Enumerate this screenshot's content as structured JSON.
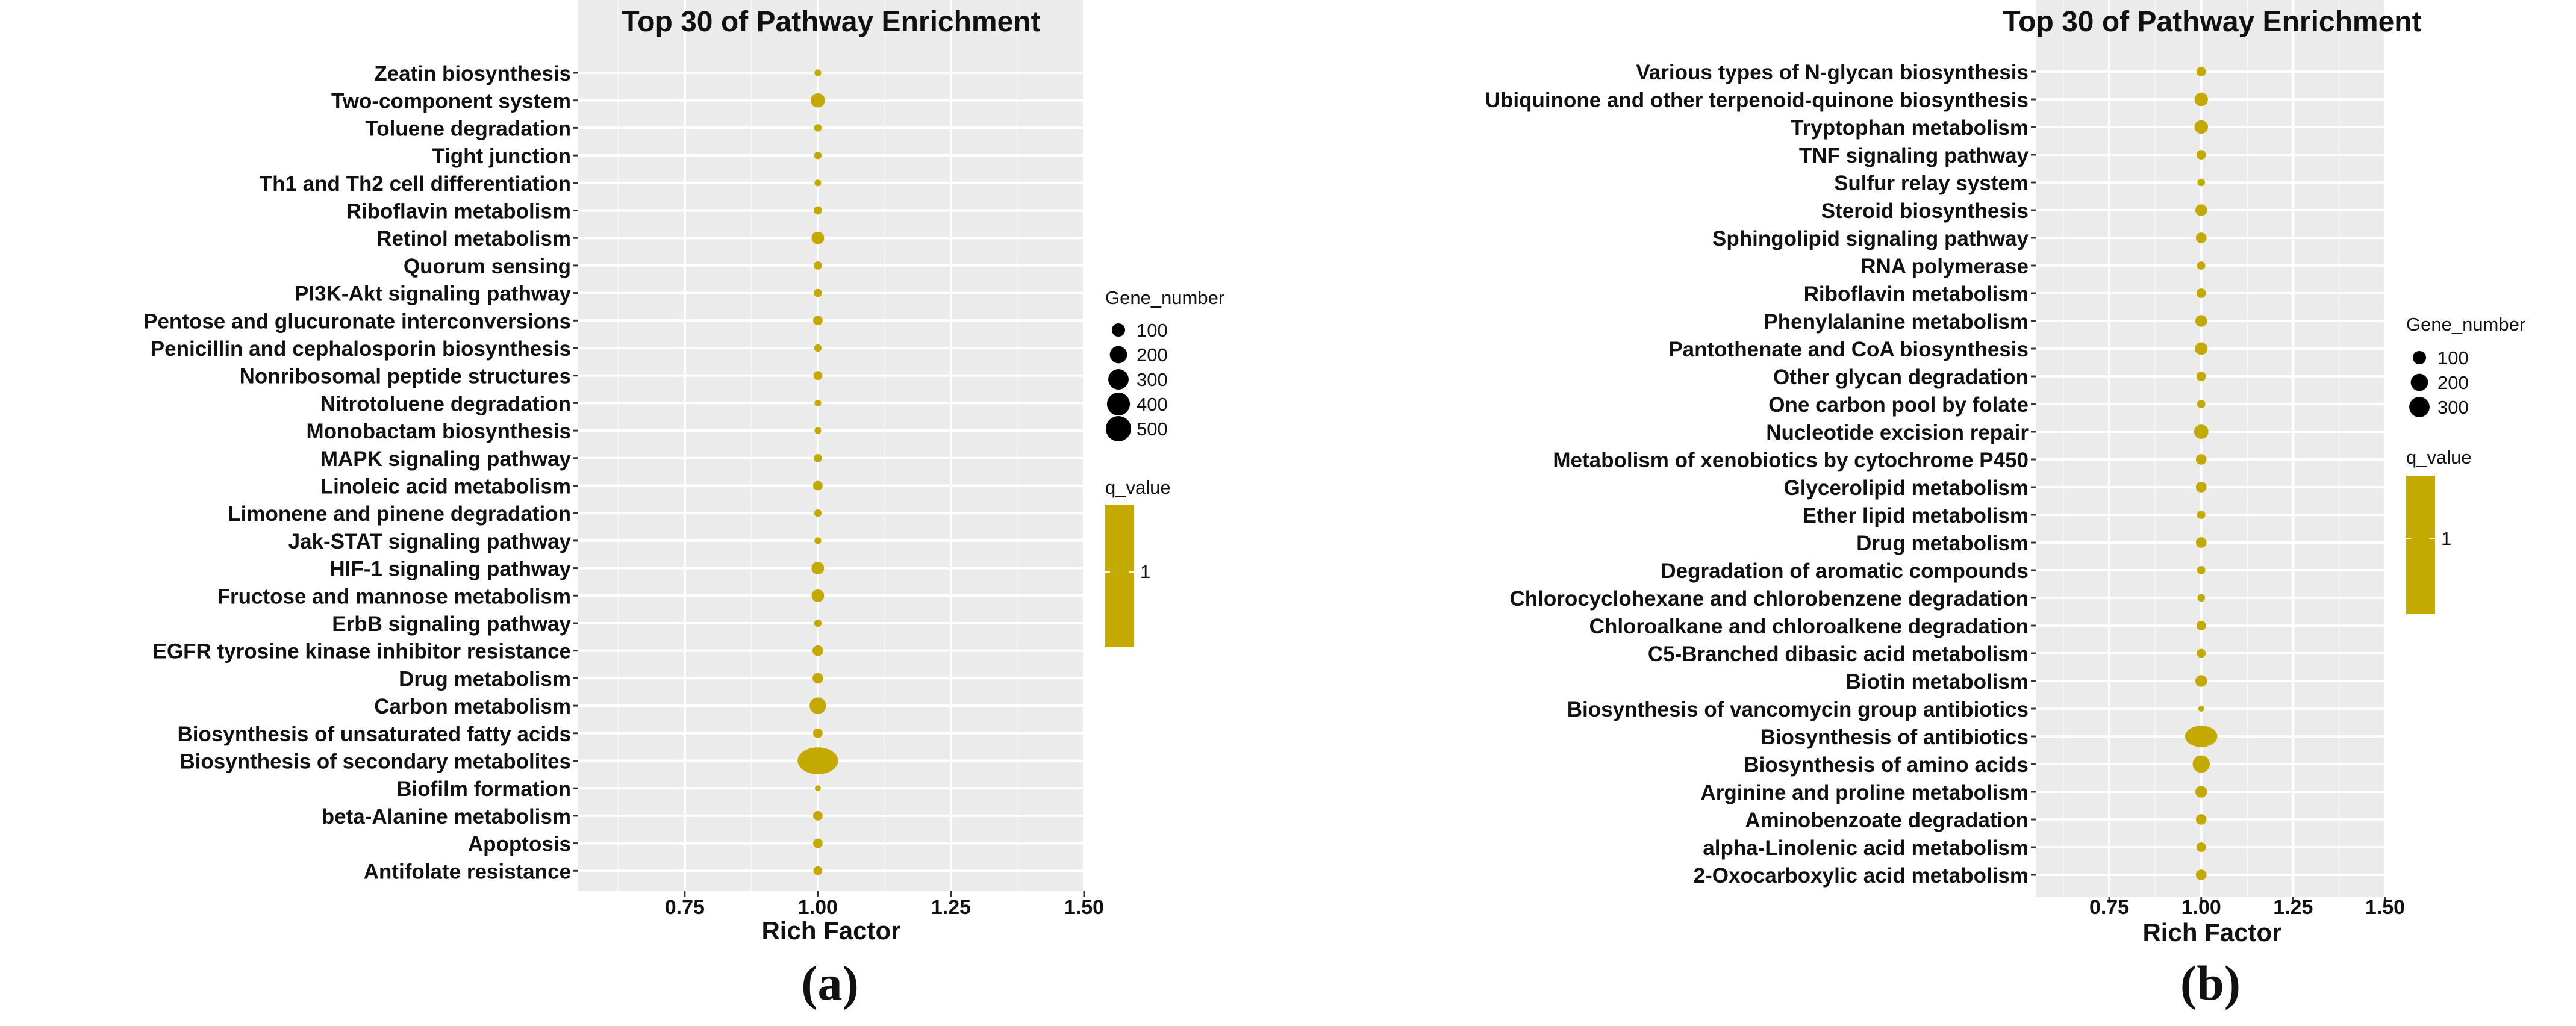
{
  "chart_data": [
    {
      "type": "scatter",
      "panel_label": "(a)",
      "title": "Top 30 of Pathway Enrichment",
      "xlabel": "Rich Factor",
      "ylabel": "",
      "xlim": [
        0.55,
        1.5
      ],
      "xticks": [
        0.75,
        1.0,
        1.25,
        1.5
      ],
      "xtick_labels": [
        "0.75",
        "1.00",
        "1.25",
        "1.50"
      ],
      "grid": true,
      "legend_position": "right",
      "size_legend": {
        "title": "Gene_number",
        "labels": [
          "100",
          "200",
          "300",
          "400",
          "500"
        ],
        "values": [
          100,
          200,
          300,
          400,
          500
        ]
      },
      "color_legend": {
        "title": "q_value",
        "labels": [
          "1"
        ],
        "color": "#c4aa00"
      },
      "point_color": "#c4aa00",
      "pathways": [
        "Zeatin biosynthesis",
        "Two-component system",
        "Toluene degradation",
        "Tight junction",
        "Th1 and Th2 cell differentiation",
        "Riboflavin metabolism",
        "Retinol metabolism",
        "Quorum sensing",
        "PI3K-Akt signaling pathway",
        "Pentose and glucuronate interconversions",
        "Penicillin and cephalosporin biosynthesis",
        "Nonribosomal peptide structures",
        "Nitrotoluene degradation",
        "Monobactam biosynthesis",
        "MAPK signaling pathway",
        "Linoleic acid metabolism",
        "Limonene and pinene degradation",
        "Jak-STAT signaling pathway",
        "HIF-1 signaling pathway",
        "Fructose and mannose metabolism",
        "ErbB signaling pathway",
        "EGFR tyrosine kinase inhibitor resistance",
        "Drug metabolism",
        "Carbon metabolism",
        "Biosynthesis of unsaturated fatty acids",
        "Biosynthesis of secondary metabolites",
        "Biofilm formation",
        "beta-Alanine metabolism",
        "Apoptosis",
        "Antifolate resistance"
      ],
      "rich_factor": [
        1,
        1,
        1,
        1,
        1,
        1,
        1,
        1,
        1,
        1,
        1,
        1,
        1,
        1,
        1,
        1,
        1,
        1,
        1,
        1,
        1,
        1,
        1,
        1,
        1,
        1,
        1,
        1,
        1,
        1
      ],
      "gene_number": [
        20,
        90,
        25,
        25,
        20,
        30,
        70,
        30,
        30,
        40,
        25,
        35,
        20,
        20,
        30,
        40,
        25,
        20,
        70,
        70,
        25,
        50,
        50,
        120,
        40,
        520,
        15,
        40,
        40,
        35
      ],
      "q_value": [
        1,
        1,
        1,
        1,
        1,
        1,
        1,
        1,
        1,
        1,
        1,
        1,
        1,
        1,
        1,
        1,
        1,
        1,
        1,
        1,
        1,
        1,
        1,
        1,
        1,
        1,
        1,
        1,
        1,
        1
      ]
    },
    {
      "type": "scatter",
      "panel_label": "(b)",
      "title": "Top 30 of Pathway Enrichment",
      "xlabel": "Rich Factor",
      "ylabel": "",
      "xlim": [
        0.55,
        1.5
      ],
      "xticks": [
        0.75,
        1.0,
        1.25,
        1.5
      ],
      "xtick_labels": [
        "0.75",
        "1.00",
        "1.25",
        "1.50"
      ],
      "grid": true,
      "legend_position": "right",
      "size_legend": {
        "title": "Gene_number",
        "labels": [
          "100",
          "200",
          "300"
        ],
        "values": [
          100,
          200,
          300
        ]
      },
      "color_legend": {
        "title": "q_value",
        "labels": [
          "1"
        ],
        "color": "#c4aa00"
      },
      "point_color": "#c4aa00",
      "pathways": [
        "Various types of N-glycan biosynthesis",
        "Ubiquinone and other terpenoid-quinone biosynthesis",
        "Tryptophan metabolism",
        "TNF signaling pathway",
        "Sulfur relay system",
        "Steroid biosynthesis",
        "Sphingolipid signaling pathway",
        "RNA polymerase",
        "Riboflavin metabolism",
        "Phenylalanine metabolism",
        "Pantothenate and CoA biosynthesis",
        "Other glycan degradation",
        "One carbon pool by folate",
        "Nucleotide excision repair",
        "Metabolism of xenobiotics by cytochrome P450",
        "Glycerolipid metabolism",
        "Ether lipid metabolism",
        "Drug metabolism",
        "Degradation of aromatic compounds",
        "Chlorocyclohexane and chlorobenzene degradation",
        "Chloroalkane and chloroalkene degradation",
        "C5-Branched dibasic acid metabolism",
        "Biotin metabolism",
        "Biosynthesis of vancomycin group antibiotics",
        "Biosynthesis of antibiotics",
        "Biosynthesis of amino acids",
        "Arginine and proline metabolism",
        "Aminobenzoate degradation",
        "alpha-Linolenic acid metabolism",
        "2-Oxocarboxylic acid metabolism"
      ],
      "rich_factor": [
        1,
        1,
        1,
        1,
        1,
        1,
        1,
        1,
        1,
        1,
        1,
        1,
        1,
        1,
        1,
        1,
        1,
        1,
        1,
        1,
        1,
        1,
        1,
        1,
        1,
        1,
        1,
        1,
        1,
        1
      ],
      "gene_number": [
        40,
        80,
        80,
        40,
        25,
        60,
        50,
        30,
        40,
        60,
        70,
        40,
        30,
        90,
        50,
        50,
        30,
        50,
        30,
        25,
        40,
        35,
        60,
        15,
        330,
        130,
        60,
        50,
        40,
        50
      ],
      "q_value": [
        1,
        1,
        1,
        1,
        1,
        1,
        1,
        1,
        1,
        1,
        1,
        1,
        1,
        1,
        1,
        1,
        1,
        1,
        1,
        1,
        1,
        1,
        1,
        1,
        1,
        1,
        1,
        1,
        1,
        1
      ]
    }
  ]
}
